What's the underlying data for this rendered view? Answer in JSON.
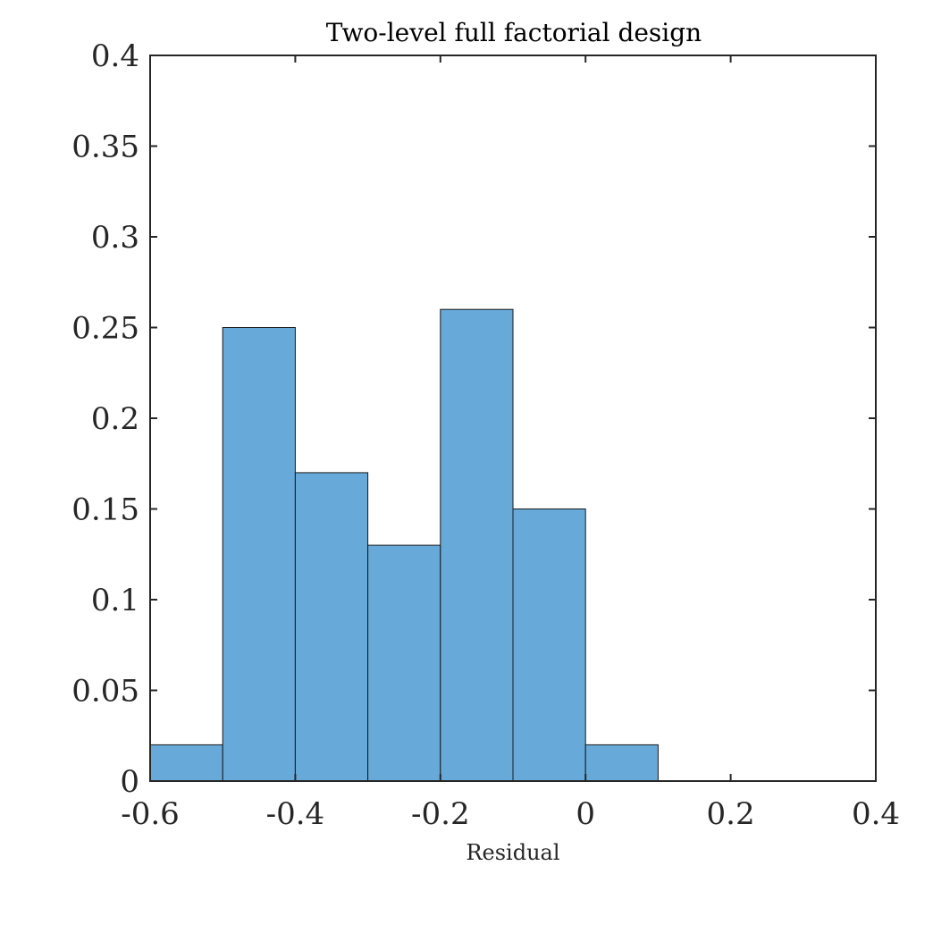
{
  "chart_data": {
    "type": "bar",
    "title": "Two-level full factorial design",
    "xlabel": "Residual",
    "ylabel": "",
    "bin_edges": [
      -0.6,
      -0.5,
      -0.4,
      -0.3,
      -0.2,
      -0.1,
      0.0,
      0.1
    ],
    "values": [
      0.02,
      0.25,
      0.17,
      0.13,
      0.26,
      0.15,
      0.02
    ],
    "xlim": [
      -0.6,
      0.4
    ],
    "ylim": [
      0,
      0.4
    ],
    "xticks": [
      -0.6,
      -0.4,
      -0.2,
      0,
      0.2,
      0.4
    ],
    "xtick_labels": [
      "-0.6",
      "-0.4",
      "-0.2",
      "0",
      "0.2",
      "0.4"
    ],
    "yticks": [
      0,
      0.05,
      0.1,
      0.15,
      0.2,
      0.25,
      0.3,
      0.35,
      0.4
    ],
    "ytick_labels": [
      "0",
      "0.05",
      "0.1",
      "0.15",
      "0.2",
      "0.25",
      "0.3",
      "0.35",
      "0.4"
    ],
    "grid": false,
    "bar_color": "#67a9d8",
    "edge_color": "#1a1a1a",
    "axis_color": "#262626"
  }
}
